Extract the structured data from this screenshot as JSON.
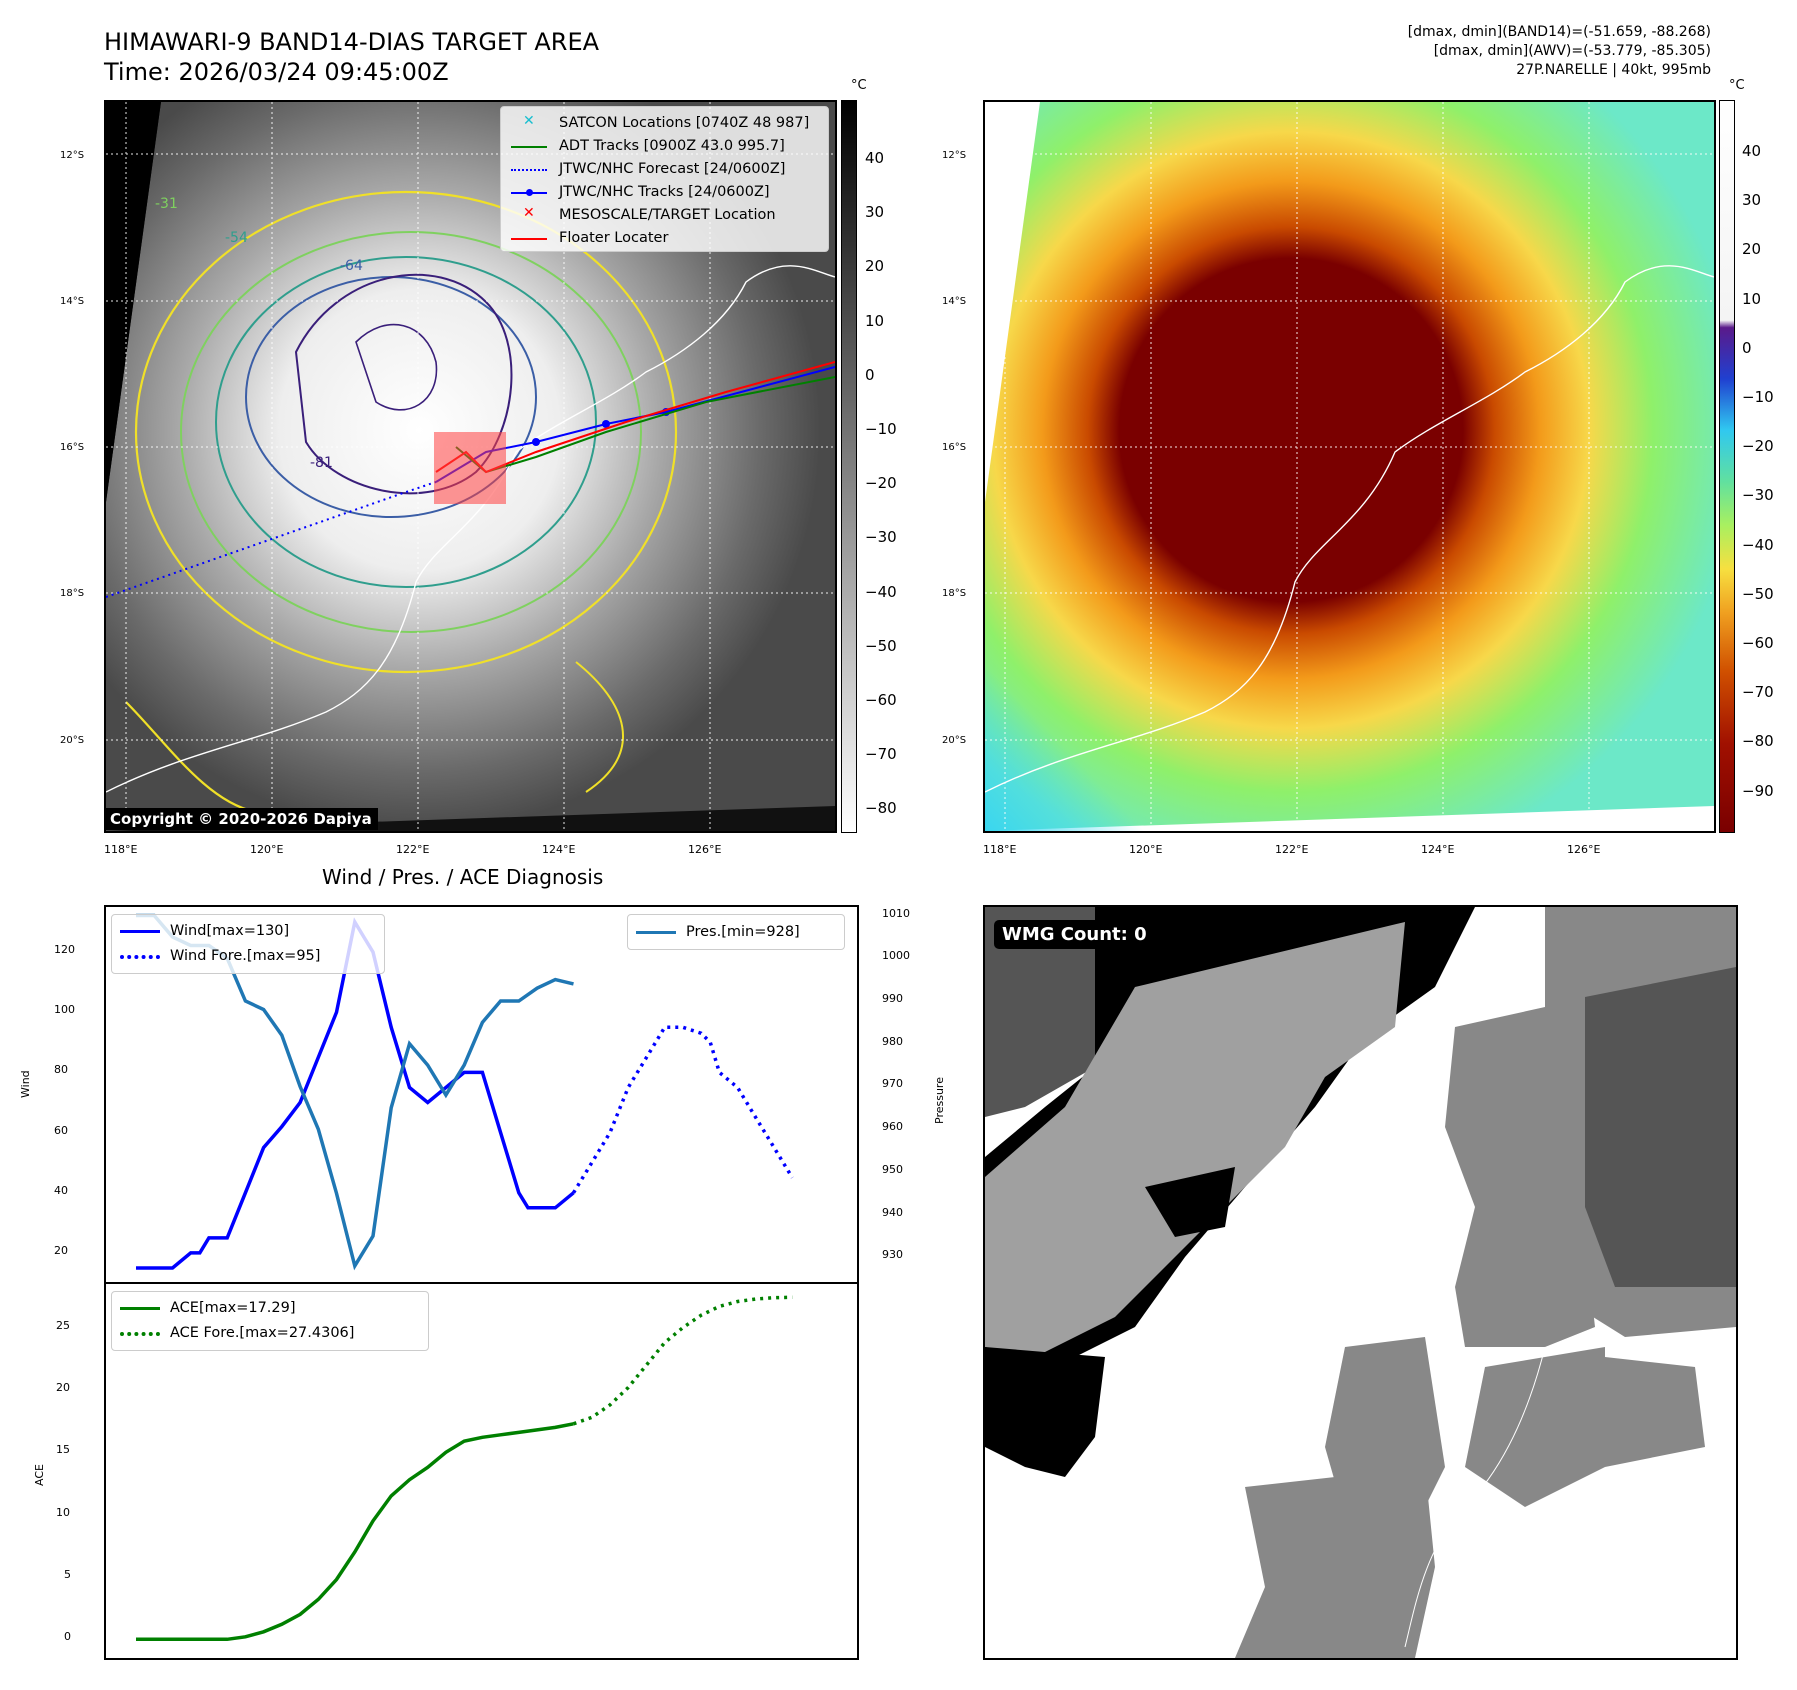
{
  "header": {
    "title": "HIMAWARI-9 BAND14-DIAS TARGET AREA",
    "time": "Time: 2026/03/24 09:45:00Z",
    "info_band14": "[dmax, dmin](BAND14)=(-51.659, -88.268)",
    "info_awv": "[dmax, dmin](AWV)=(-53.779, -85.305)",
    "storm": "27P.NARELLE | 40kt, 995mb"
  },
  "map_axes": {
    "lat_labels": [
      "12°S",
      "14°S",
      "16°S",
      "18°S",
      "20°S"
    ],
    "lon_labels": [
      "118°E",
      "120°E",
      "122°E",
      "124°E",
      "126°E"
    ]
  },
  "ir_panel": {
    "unit": "°C",
    "colorbar_ticks": [
      "40",
      "30",
      "20",
      "10",
      "0",
      "−10",
      "−20",
      "−30",
      "−40",
      "−50",
      "−60",
      "−70",
      "−80"
    ],
    "legend": [
      {
        "label": "SATCON Locations [0740Z 48 987]",
        "color": "#17becf",
        "symbol": "x"
      },
      {
        "label": "ADT Tracks [0900Z 43.0 995.7]",
        "color": "#008000",
        "symbol": "line"
      },
      {
        "label": "JTWC/NHC Forecast [24/0600Z]",
        "color": "#0000ff",
        "symbol": "dotted"
      },
      {
        "label": "JTWC/NHC Tracks [24/0600Z]",
        "color": "#0000ff",
        "symbol": "line-dot"
      },
      {
        "label": "MESOSCALE/TARGET Location",
        "color": "#ff0000",
        "symbol": "x"
      },
      {
        "label": "Floater Locater",
        "color": "#ff0000",
        "symbol": "line"
      }
    ],
    "contour_labels": [
      "-31",
      "-54",
      "-64",
      "-81"
    ],
    "copyright": "Copyright © 2020-2026 Dapiya"
  },
  "color_panel": {
    "unit": "°C",
    "colorbar_ticks": [
      "40",
      "30",
      "20",
      "10",
      "0",
      "−10",
      "−20",
      "−30",
      "−40",
      "−50",
      "−60",
      "−70",
      "−80",
      "−90"
    ]
  },
  "chart_data": [
    {
      "type": "line",
      "title": "Wind / Pres. / ACE Diagnosis",
      "ylabel": "Wind",
      "y2label": "Pressure",
      "ylim": [
        10,
        135
      ],
      "y2lim": [
        924,
        1012
      ],
      "yticks": [
        20,
        40,
        60,
        80,
        100,
        120
      ],
      "y2ticks": [
        930,
        940,
        950,
        960,
        970,
        980,
        990,
        1000,
        1010
      ],
      "x_range": [
        0,
        39
      ],
      "series": [
        {
          "name": "Wind[max=130]",
          "color": "#0000ff",
          "style": "solid",
          "axis": "left",
          "x": [
            0,
            1,
            2,
            3,
            3.5,
            4,
            5,
            6,
            7,
            8,
            9,
            10,
            11,
            12,
            12.5,
            13,
            14,
            15,
            16,
            17,
            18,
            19,
            20,
            21,
            21.5,
            22,
            23,
            24
          ],
          "values": [
            15,
            15,
            15,
            20,
            20,
            25,
            25,
            40,
            55,
            62,
            70,
            85,
            100,
            130,
            125,
            120,
            95,
            75,
            70,
            75,
            80,
            80,
            60,
            40,
            35,
            35,
            35,
            40
          ]
        },
        {
          "name": "Wind Fore.[max=95]",
          "color": "#0000ff",
          "style": "dotted",
          "axis": "left",
          "x": [
            24,
            25,
            26,
            27,
            28,
            29,
            30,
            31,
            31.5,
            32,
            33,
            34,
            35,
            36
          ],
          "values": [
            40,
            50,
            60,
            75,
            85,
            95,
            95,
            93,
            90,
            80,
            75,
            65,
            55,
            45
          ]
        },
        {
          "name": "Pres.[min=928]",
          "color": "#1f77b4",
          "style": "solid",
          "axis": "right",
          "x": [
            0,
            1,
            2,
            3,
            4,
            5,
            6,
            7,
            8,
            9,
            10,
            11,
            12,
            13,
            14,
            15,
            16,
            17,
            18,
            19,
            20,
            21,
            22,
            23,
            24
          ],
          "values": [
            1010,
            1010,
            1005,
            1003,
            1003,
            1000,
            990,
            988,
            982,
            970,
            960,
            945,
            928,
            935,
            965,
            980,
            975,
            968,
            975,
            985,
            990,
            990,
            993,
            995,
            994
          ]
        }
      ],
      "legend_left": [
        "Wind[max=130]",
        "Wind Fore.[max=95]"
      ],
      "legend_right": [
        "Pres.[min=928]"
      ]
    },
    {
      "type": "line",
      "ylabel": "ACE",
      "ylim": [
        -1.5,
        28.5
      ],
      "yticks": [
        0,
        5,
        10,
        15,
        20,
        25
      ],
      "x_range": [
        0,
        39
      ],
      "series": [
        {
          "name": "ACE[max=17.29]",
          "color": "#008000",
          "style": "solid",
          "x": [
            0,
            2,
            4,
            5,
            6,
            7,
            8,
            9,
            10,
            11,
            12,
            13,
            14,
            15,
            16,
            17,
            18,
            19,
            20,
            21,
            22,
            23,
            24
          ],
          "values": [
            0,
            0,
            0,
            0,
            0.2,
            0.6,
            1.2,
            2,
            3.2,
            4.8,
            7,
            9.5,
            11.5,
            12.8,
            13.8,
            15,
            15.9,
            16.2,
            16.4,
            16.6,
            16.8,
            17,
            17.29
          ]
        },
        {
          "name": "ACE Fore.[max=27.4306]",
          "color": "#008000",
          "style": "dotted",
          "x": [
            24,
            25,
            26,
            27,
            28,
            29,
            30,
            31,
            32,
            33,
            34,
            35,
            36
          ],
          "values": [
            17.29,
            17.8,
            18.8,
            20.2,
            22,
            23.8,
            25,
            26,
            26.7,
            27.1,
            27.3,
            27.4,
            27.43
          ]
        }
      ]
    }
  ],
  "wmg_panel": {
    "count_label": "WMG Count: 0"
  }
}
